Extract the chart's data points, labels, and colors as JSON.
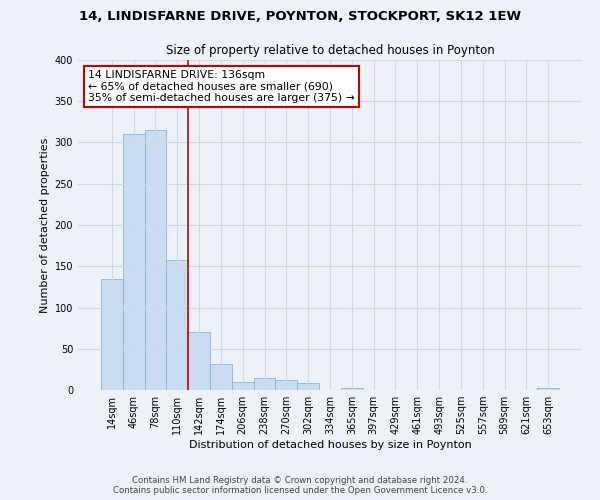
{
  "title": "14, LINDISFARNE DRIVE, POYNTON, STOCKPORT, SK12 1EW",
  "subtitle": "Size of property relative to detached houses in Poynton",
  "xlabel": "Distribution of detached houses by size in Poynton",
  "ylabel": "Number of detached properties",
  "bar_color": "#c8ddf0",
  "bar_edge_color": "#8ab4d4",
  "bin_labels": [
    "14sqm",
    "46sqm",
    "78sqm",
    "110sqm",
    "142sqm",
    "174sqm",
    "206sqm",
    "238sqm",
    "270sqm",
    "302sqm",
    "334sqm",
    "365sqm",
    "397sqm",
    "429sqm",
    "461sqm",
    "493sqm",
    "525sqm",
    "557sqm",
    "589sqm",
    "621sqm",
    "653sqm"
  ],
  "bar_heights": [
    135,
    310,
    315,
    158,
    70,
    32,
    10,
    15,
    12,
    8,
    0,
    3,
    0,
    0,
    0,
    0,
    0,
    0,
    0,
    0,
    2
  ],
  "ylim": [
    0,
    400
  ],
  "yticks": [
    0,
    50,
    100,
    150,
    200,
    250,
    300,
    350,
    400
  ],
  "property_line_bin": 3,
  "annotation_title": "14 LINDISFARNE DRIVE: 136sqm",
  "annotation_line1": "← 65% of detached houses are smaller (690)",
  "annotation_line2": "35% of semi-detached houses are larger (375) →",
  "box_facecolor": "#ffffff",
  "box_edgecolor": "#cc0000",
  "line_color": "#cc0000",
  "grid_color": "#d0d8e8",
  "footer_line1": "Contains HM Land Registry data © Crown copyright and database right 2024.",
  "footer_line2": "Contains public sector information licensed under the Open Government Licence v3.0.",
  "bg_color": "#edf2f9",
  "title_fontsize": 9.5,
  "subtitle_fontsize": 8.5,
  "axis_fontsize": 8,
  "tick_fontsize": 7,
  "footer_fontsize": 6.2,
  "annotation_fontsize": 7.8
}
